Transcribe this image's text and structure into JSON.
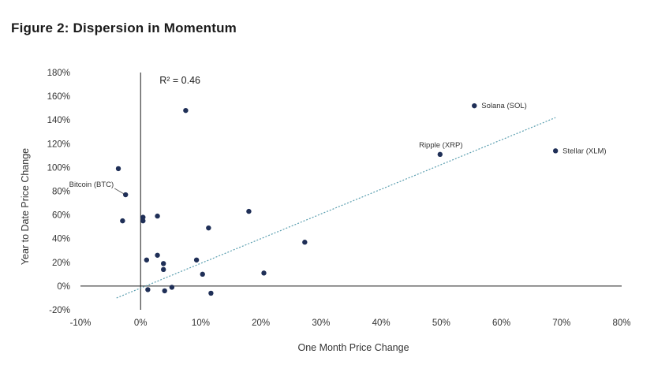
{
  "chart_data": {
    "type": "scatter",
    "title": "Figure 2: Dispersion in Momentum",
    "xlabel": "One Month Price Change",
    "ylabel": "Year to Date Price Change",
    "xlim": [
      -10,
      80
    ],
    "ylim": [
      -20,
      180
    ],
    "x_ticks": [
      -10,
      0,
      10,
      20,
      30,
      40,
      50,
      60,
      70,
      80
    ],
    "y_ticks": [
      -20,
      0,
      20,
      40,
      60,
      80,
      100,
      120,
      140,
      160,
      180
    ],
    "tick_suffix": "%",
    "annotation": "R² = 0.46",
    "trendline": {
      "style": "dotted",
      "color": "#5b9fb0",
      "x": [
        -4,
        69
      ],
      "y": [
        -10,
        142
      ]
    },
    "marker_color": "#1f2f57",
    "points": [
      {
        "x": 55.5,
        "y": 152,
        "label": "Solana (SOL)"
      },
      {
        "x": 69.0,
        "y": 114,
        "label": "Stellar (XLM)"
      },
      {
        "x": 49.8,
        "y": 111,
        "label": "Ripple (XRP)"
      },
      {
        "x": -2.5,
        "y": 77,
        "label": "Bitcoin (BTC)"
      },
      {
        "x": 7.5,
        "y": 148,
        "label": ""
      },
      {
        "x": -3.7,
        "y": 99,
        "label": ""
      },
      {
        "x": -3.0,
        "y": 55,
        "label": ""
      },
      {
        "x": 0.4,
        "y": 58,
        "label": ""
      },
      {
        "x": 0.4,
        "y": 55,
        "label": ""
      },
      {
        "x": 2.8,
        "y": 59,
        "label": ""
      },
      {
        "x": 18.0,
        "y": 63,
        "label": ""
      },
      {
        "x": 11.3,
        "y": 49,
        "label": ""
      },
      {
        "x": 27.3,
        "y": 37,
        "label": ""
      },
      {
        "x": 1.0,
        "y": 22,
        "label": ""
      },
      {
        "x": 2.8,
        "y": 26,
        "label": ""
      },
      {
        "x": 3.8,
        "y": 19,
        "label": ""
      },
      {
        "x": 3.8,
        "y": 14,
        "label": ""
      },
      {
        "x": 9.3,
        "y": 22,
        "label": ""
      },
      {
        "x": 10.3,
        "y": 10,
        "label": ""
      },
      {
        "x": 20.5,
        "y": 11,
        "label": ""
      },
      {
        "x": 1.2,
        "y": -3,
        "label": ""
      },
      {
        "x": 4.0,
        "y": -4,
        "label": ""
      },
      {
        "x": 5.2,
        "y": -1,
        "label": ""
      },
      {
        "x": 11.7,
        "y": -6,
        "label": ""
      }
    ]
  }
}
